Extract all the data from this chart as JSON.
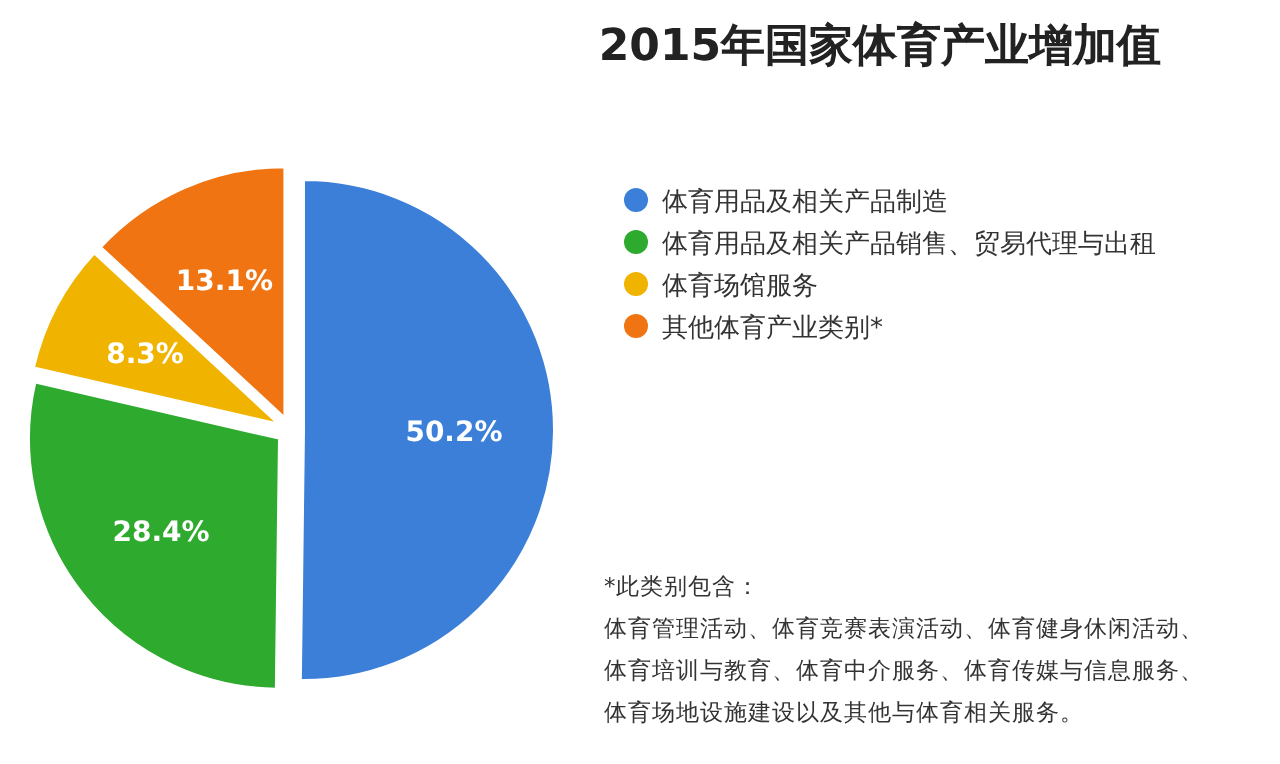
{
  "chart_data": {
    "type": "pie",
    "title": "2015年国家体育产业增加值",
    "categories": [
      "体育用品及相关产品制造",
      "体育用品及相关产品销售、贸易代理与出租",
      "体育场馆服务",
      "其他体育产业类别*"
    ],
    "values": [
      50.2,
      28.4,
      8.3,
      13.1
    ],
    "value_labels": [
      "50.2%",
      "28.4%",
      "8.3%",
      "13.1%"
    ],
    "colors": [
      "#3b7fd8",
      "#2eaa2e",
      "#f0b400",
      "#f07412"
    ],
    "legend": "right",
    "annotations": [
      "*此类别包含：",
      "体育管理活动、体育竞赛表演活动、体育健身休闲活动、",
      "体育培训与教育、体育中介服务、体育传媒与信息服务、",
      "体育场地设施建设以及其他与体育相关服务。"
    ]
  }
}
